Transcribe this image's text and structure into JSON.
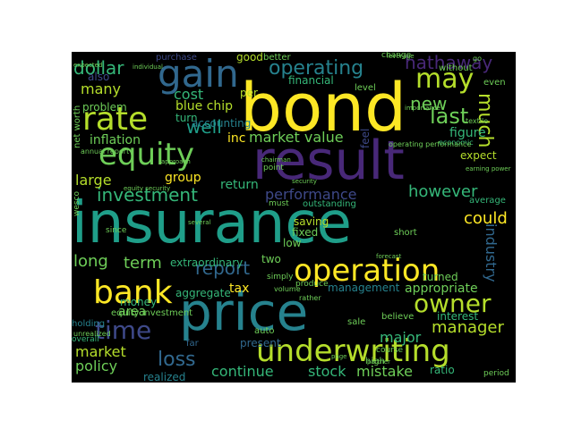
{
  "colors": {
    "background": "#000000",
    "page": "#ffffff",
    "palette": [
      "#fde725",
      "#b5de2b",
      "#6ece58",
      "#35b779",
      "#1f9e89",
      "#26828e",
      "#31688e",
      "#3e4989",
      "#482878",
      "#440154"
    ]
  },
  "words": [
    {
      "text": "insurance",
      "color": "#1f9e89"
    },
    {
      "text": "bond",
      "color": "#fde725"
    },
    {
      "text": "result",
      "color": "#482878"
    },
    {
      "text": "price",
      "color": "#26828e"
    },
    {
      "text": "operation",
      "color": "#fde725"
    },
    {
      "text": "underwriting",
      "color": "#b5de2b"
    },
    {
      "text": "bank",
      "color": "#fde725"
    },
    {
      "text": "rate",
      "color": "#b5de2b"
    },
    {
      "text": "gain",
      "color": "#31688e"
    },
    {
      "text": "equity",
      "color": "#6ece58"
    },
    {
      "text": "owner",
      "color": "#b5de2b"
    },
    {
      "text": "time",
      "color": "#3e4989"
    },
    {
      "text": "may",
      "color": "#b5de2b"
    },
    {
      "text": "operating",
      "color": "#26828e"
    },
    {
      "text": "hathaway",
      "color": "#482878"
    },
    {
      "text": "dollar",
      "color": "#35b779"
    },
    {
      "text": "loss",
      "color": "#31688e"
    },
    {
      "text": "much",
      "color": "#b5de2b"
    },
    {
      "text": "investment",
      "color": "#35b779"
    },
    {
      "text": "last",
      "color": "#6ece58"
    },
    {
      "text": "new",
      "color": "#6ece58"
    },
    {
      "text": "well",
      "color": "#1f9e89"
    },
    {
      "text": "report",
      "color": "#31688e"
    },
    {
      "text": "performance",
      "color": "#3e4989"
    },
    {
      "text": "however",
      "color": "#35b779"
    },
    {
      "text": "manager",
      "color": "#b5de2b"
    },
    {
      "text": "market value",
      "color": "#6ece58"
    },
    {
      "text": "many",
      "color": "#b5de2b"
    },
    {
      "text": "long",
      "color": "#6ece58"
    },
    {
      "text": "term",
      "color": "#6ece58"
    },
    {
      "text": "could",
      "color": "#fde725"
    },
    {
      "text": "industry",
      "color": "#31688e"
    },
    {
      "text": "market",
      "color": "#b5de2b"
    },
    {
      "text": "policy",
      "color": "#6ece58"
    },
    {
      "text": "continue",
      "color": "#35b779"
    },
    {
      "text": "stock",
      "color": "#35b779"
    },
    {
      "text": "mistake",
      "color": "#6ece58"
    },
    {
      "text": "major",
      "color": "#35b779"
    },
    {
      "text": "appropriate",
      "color": "#6ece58"
    },
    {
      "text": "area",
      "color": "#6ece58"
    },
    {
      "text": "tax",
      "color": "#fde725"
    },
    {
      "text": "management",
      "color": "#26828e"
    },
    {
      "text": "cost",
      "color": "#35b779"
    },
    {
      "text": "large",
      "color": "#b5de2b"
    },
    {
      "text": "inflation",
      "color": "#6ece58"
    },
    {
      "text": "blue chip",
      "color": "#b5de2b"
    },
    {
      "text": "inc",
      "color": "#fde725"
    },
    {
      "text": "group",
      "color": "#fde725"
    },
    {
      "text": "return",
      "color": "#35b779"
    },
    {
      "text": "figure",
      "color": "#35b779"
    },
    {
      "text": "expect",
      "color": "#b5de2b"
    },
    {
      "text": "financial",
      "color": "#35b779"
    },
    {
      "text": "good",
      "color": "#b5de2b"
    },
    {
      "text": "also",
      "color": "#3e4989"
    },
    {
      "text": "aggregate",
      "color": "#35b779"
    },
    {
      "text": "extraordinary",
      "color": "#35b779"
    },
    {
      "text": "ratio",
      "color": "#35b779"
    },
    {
      "text": "problem",
      "color": "#6ece58"
    },
    {
      "text": "turn",
      "color": "#35b779"
    },
    {
      "text": "accounting",
      "color": "#26828e"
    },
    {
      "text": "present",
      "color": "#31688e"
    },
    {
      "text": "money",
      "color": "#35b779"
    },
    {
      "text": "two",
      "color": "#6ece58"
    },
    {
      "text": "low",
      "color": "#6ece58"
    },
    {
      "text": "saving",
      "color": "#b5de2b"
    },
    {
      "text": "fixed",
      "color": "#6ece58"
    },
    {
      "text": "interest",
      "color": "#35b779"
    },
    {
      "text": "realized",
      "color": "#26828e"
    },
    {
      "text": "turned",
      "color": "#6ece58"
    },
    {
      "text": "per",
      "color": "#b5de2b"
    },
    {
      "text": "purchase",
      "color": "#3e4989"
    },
    {
      "text": "better",
      "color": "#6ece58"
    },
    {
      "text": "level",
      "color": "#6ece58"
    },
    {
      "text": "even",
      "color": "#6ece58"
    },
    {
      "text": "without",
      "color": "#6ece58"
    },
    {
      "text": "short",
      "color": "#6ece58"
    },
    {
      "text": "net worth",
      "color": "#6ece58"
    },
    {
      "text": "feel",
      "color": "#3e4989"
    },
    {
      "text": "holding",
      "color": "#26828e"
    },
    {
      "text": "equity investment",
      "color": "#6ece58"
    },
    {
      "text": "far",
      "color": "#31688e"
    },
    {
      "text": "sale",
      "color": "#6ece58"
    },
    {
      "text": "believe",
      "color": "#6ece58"
    },
    {
      "text": "average",
      "color": "#35b779"
    },
    {
      "text": "auto",
      "color": "#6ece58"
    },
    {
      "text": "high",
      "color": "#6ece58"
    },
    {
      "text": "simply",
      "color": "#6ece58"
    },
    {
      "text": "produce",
      "color": "#6ece58"
    },
    {
      "text": "outstanding",
      "color": "#35b779"
    },
    {
      "text": "change",
      "color": "#6ece58"
    },
    {
      "text": "point",
      "color": "#6ece58"
    },
    {
      "text": "since",
      "color": "#6ece58"
    },
    {
      "text": "overall",
      "color": "#35b779"
    },
    {
      "text": "wesco",
      "color": "#6ece58"
    },
    {
      "text": "period",
      "color": "#6ece58"
    },
    {
      "text": "course",
      "color": "#6ece58"
    },
    {
      "text": "annual report",
      "color": "#6ece58"
    },
    {
      "text": "must",
      "color": "#6ece58"
    },
    {
      "text": "economic",
      "color": "#35b779"
    },
    {
      "text": "expected",
      "color": "#6ece58"
    },
    {
      "text": "unrealized",
      "color": "#6ece58"
    },
    {
      "text": "operating performance",
      "color": "#6ece58"
    },
    {
      "text": "volume",
      "color": "#6ece58"
    },
    {
      "text": "rather",
      "color": "#6ece58"
    },
    {
      "text": "individual",
      "color": "#6ece58"
    },
    {
      "text": "page",
      "color": "#6ece58"
    },
    {
      "text": "forecast",
      "color": "#6ece58"
    },
    {
      "text": "textile",
      "color": "#6ece58"
    },
    {
      "text": "several",
      "color": "#6ece58"
    },
    {
      "text": "chairman",
      "color": "#6ece58"
    },
    {
      "text": "leverage",
      "color": "#6ece58"
    },
    {
      "text": "security",
      "color": "#6ece58"
    },
    {
      "text": "equity security",
      "color": "#6ece58"
    },
    {
      "text": "approach",
      "color": "#6ece58"
    },
    {
      "text": "importance",
      "color": "#6ece58"
    },
    {
      "text": "earning power",
      "color": "#6ece58"
    },
    {
      "text": "partner",
      "color": "#6ece58"
    },
    {
      "text": "go",
      "color": "#6ece58"
    }
  ]
}
